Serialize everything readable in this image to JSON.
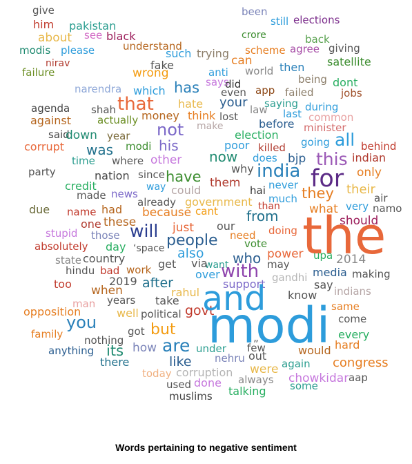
{
  "caption": "Words pertaining to negative sentiment",
  "words": [
    {
      "text": "give",
      "color": "#555555"
    },
    {
      "text": "been",
      "color": "#7a83b8"
    },
    {
      "text": "him",
      "color": "#c0392b"
    },
    {
      "text": "pakistan",
      "color": "#2a9d8f"
    },
    {
      "text": "still",
      "color": "#2d9cdb"
    },
    {
      "text": "elections",
      "color": "#7b2d8b"
    },
    {
      "text": "about",
      "color": "#e8b84a"
    },
    {
      "text": "see",
      "color": "#d36bc6"
    },
    {
      "text": "black",
      "color": "#9b1d5a"
    },
    {
      "text": "crore",
      "color": "#3c8d2f"
    },
    {
      "text": "back",
      "color": "#58a14e"
    },
    {
      "text": "modis",
      "color": "#1f8a70"
    },
    {
      "text": "please",
      "color": "#2d9cdb"
    },
    {
      "text": "understand",
      "color": "#b5651d"
    },
    {
      "text": "such",
      "color": "#2d9cdb"
    },
    {
      "text": "trying",
      "color": "#8c7e6a"
    },
    {
      "text": "scheme",
      "color": "#e67e22"
    },
    {
      "text": "agree",
      "color": "#a64ca6"
    },
    {
      "text": "giving",
      "color": "#555555"
    },
    {
      "text": "nirav",
      "color": "#b03a2e"
    },
    {
      "text": "can",
      "color": "#e67e22"
    },
    {
      "text": "satellite",
      "color": "#3c8d2f"
    },
    {
      "text": "fake",
      "color": "#555555"
    },
    {
      "text": "failure",
      "color": "#6b8e23"
    },
    {
      "text": "wrong",
      "color": "#f39c12"
    },
    {
      "text": "anti",
      "color": "#2d9cdb"
    },
    {
      "text": "world",
      "color": "#888888"
    },
    {
      "text": "then",
      "color": "#2980b9"
    },
    {
      "text": "being",
      "color": "#8c7e6a"
    },
    {
      "text": "says",
      "color": "#c678dd"
    },
    {
      "text": "did",
      "color": "#333333"
    },
    {
      "text": "dont",
      "color": "#27ae60"
    },
    {
      "text": "narendra",
      "color": "#8fa8d8"
    },
    {
      "text": "which",
      "color": "#2d9cdb"
    },
    {
      "text": "has",
      "color": "#2980b9"
    },
    {
      "text": "even",
      "color": "#555555"
    },
    {
      "text": "app",
      "color": "#8b4513"
    },
    {
      "text": "failed",
      "color": "#8c7e6a"
    },
    {
      "text": "jobs",
      "color": "#a0522d"
    },
    {
      "text": "that",
      "color": "#e8683a"
    },
    {
      "text": "your",
      "color": "#2a5d8f"
    },
    {
      "text": "agenda",
      "color": "#444444"
    },
    {
      "text": "shah",
      "color": "#555555"
    },
    {
      "text": "hate",
      "color": "#e8b84a"
    },
    {
      "text": "law",
      "color": "#888888"
    },
    {
      "text": "saying",
      "color": "#2a9d8f"
    },
    {
      "text": "during",
      "color": "#2d9cdb"
    },
    {
      "text": "against",
      "color": "#b5651d"
    },
    {
      "text": "actually",
      "color": "#6b8e23"
    },
    {
      "text": "money",
      "color": "#b5651d"
    },
    {
      "text": "think",
      "color": "#e67e22"
    },
    {
      "text": "lost",
      "color": "#555555"
    },
    {
      "text": "last",
      "color": "#2d9cdb"
    },
    {
      "text": "common",
      "color": "#e8a0a0"
    },
    {
      "text": "not",
      "color": "#7b68c8"
    },
    {
      "text": "make",
      "color": "#b5a5a5"
    },
    {
      "text": "before",
      "color": "#2a5d8f"
    },
    {
      "text": "minister",
      "color": "#d36b6b"
    },
    {
      "text": "said",
      "color": "#444444"
    },
    {
      "text": "down",
      "color": "#1f8a70"
    },
    {
      "text": "year",
      "color": "#7a6a3a"
    },
    {
      "text": "election",
      "color": "#27ae60"
    },
    {
      "text": "all",
      "color": "#2d9cdb"
    },
    {
      "text": "corrupt",
      "color": "#e8683a"
    },
    {
      "text": "modi",
      "color": "#3c8d2f"
    },
    {
      "text": "his",
      "color": "#7b68c8"
    },
    {
      "text": "poor",
      "color": "#2d9cdb"
    },
    {
      "text": "killed",
      "color": "#b03a2e"
    },
    {
      "text": "going",
      "color": "#2d9cdb"
    },
    {
      "text": "behind",
      "color": "#c0392b"
    },
    {
      "text": "was",
      "color": "#1f6f8b"
    },
    {
      "text": "this",
      "color": "#9b59b6"
    },
    {
      "text": "time",
      "color": "#2a9d8f"
    },
    {
      "text": "where",
      "color": "#555555"
    },
    {
      "text": "other",
      "color": "#c678dd"
    },
    {
      "text": "now",
      "color": "#1f8a70"
    },
    {
      "text": "does",
      "color": "#2d9cdb"
    },
    {
      "text": "bjp",
      "color": "#2a5d8f"
    },
    {
      "text": "indian",
      "color": "#b03a2e"
    },
    {
      "text": "party",
      "color": "#555555"
    },
    {
      "text": "why",
      "color": "#555555"
    },
    {
      "text": "india",
      "color": "#2980b9"
    },
    {
      "text": "nation",
      "color": "#444444"
    },
    {
      "text": "since",
      "color": "#555555"
    },
    {
      "text": "have",
      "color": "#3c8d2f"
    },
    {
      "text": "for",
      "color": "#5b2a86"
    },
    {
      "text": "only",
      "color": "#e67e22"
    },
    {
      "text": "credit",
      "color": "#27ae60"
    },
    {
      "text": "way",
      "color": "#2d9cdb"
    },
    {
      "text": "them",
      "color": "#b03a2e"
    },
    {
      "text": "never",
      "color": "#2d9cdb"
    },
    {
      "text": "they",
      "color": "#e67e22"
    },
    {
      "text": "their",
      "color": "#e8b84a"
    },
    {
      "text": "made",
      "color": "#555555"
    },
    {
      "text": "news",
      "color": "#7b68c8"
    },
    {
      "text": "could",
      "color": "#b5a5a5"
    },
    {
      "text": "hai",
      "color": "#333333"
    },
    {
      "text": "air",
      "color": "#555555"
    },
    {
      "text": "already",
      "color": "#555555"
    },
    {
      "text": "government",
      "color": "#e8b84a"
    },
    {
      "text": "much",
      "color": "#2d9cdb"
    },
    {
      "text": "due",
      "color": "#6b6b3a"
    },
    {
      "text": "name",
      "color": "#c0392b"
    },
    {
      "text": "had",
      "color": "#b5651d"
    },
    {
      "text": "because",
      "color": "#e67e22"
    },
    {
      "text": "cant",
      "color": "#f39c12"
    },
    {
      "text": "than",
      "color": "#c0392b"
    },
    {
      "text": "what",
      "color": "#e67e22"
    },
    {
      "text": "very",
      "color": "#2d9cdb"
    },
    {
      "text": "namo",
      "color": "#555555"
    },
    {
      "text": "from",
      "color": "#1f6f8b"
    },
    {
      "text": "should",
      "color": "#9b1d5a"
    },
    {
      "text": "one",
      "color": "#b03a2e"
    },
    {
      "text": "these",
      "color": "#b5651d"
    },
    {
      "text": "stupid",
      "color": "#c678dd"
    },
    {
      "text": "those",
      "color": "#7a83b8"
    },
    {
      "text": "will",
      "color": "#2a3d8f"
    },
    {
      "text": "just",
      "color": "#e8683a"
    },
    {
      "text": "our",
      "color": "#555555"
    },
    {
      "text": "doing",
      "color": "#e8683a"
    },
    {
      "text": "the",
      "color": "#e8683a"
    },
    {
      "text": "absolutely",
      "color": "#c0392b"
    },
    {
      "text": "day",
      "color": "#27ae60"
    },
    {
      "text": "‘space",
      "color": "#555555"
    },
    {
      "text": "people",
      "color": "#2a5d8f"
    },
    {
      "text": "need",
      "color": "#e67e22"
    },
    {
      "text": "vote",
      "color": "#3c8d2f"
    },
    {
      "text": "state",
      "color": "#888888"
    },
    {
      "text": "country",
      "color": "#555555"
    },
    {
      "text": "also",
      "color": "#2d9cdb"
    },
    {
      "text": "who",
      "color": "#2a5d8f"
    },
    {
      "text": "power",
      "color": "#e8683a"
    },
    {
      "text": "upa",
      "color": "#27ae60"
    },
    {
      "text": "2014",
      "color": "#888888"
    },
    {
      "text": "hindu",
      "color": "#555555"
    },
    {
      "text": "bad",
      "color": "#c0392b"
    },
    {
      "text": "work",
      "color": "#b5651d"
    },
    {
      "text": "get",
      "color": "#555555"
    },
    {
      "text": "want",
      "color": "#2a9d8f"
    },
    {
      "text": "via",
      "color": "#555555"
    },
    {
      "text": "with",
      "color": "#8e44ad"
    },
    {
      "text": "may",
      "color": "#555555"
    },
    {
      "text": "media",
      "color": "#2a5d8f"
    },
    {
      "text": "making",
      "color": "#555555"
    },
    {
      "text": "too",
      "color": "#c0392b"
    },
    {
      "text": "2019",
      "color": "#555555"
    },
    {
      "text": "after",
      "color": "#1f6f8b"
    },
    {
      "text": "over",
      "color": "#2d9cdb"
    },
    {
      "text": "support",
      "color": "#7b68c8"
    },
    {
      "text": "gandhi",
      "color": "#b5b5b5"
    },
    {
      "text": "say",
      "color": "#555555"
    },
    {
      "text": "when",
      "color": "#b5651d"
    },
    {
      "text": "indians",
      "color": "#b5a5a5"
    },
    {
      "text": "man",
      "color": "#e8a0a0"
    },
    {
      "text": "years",
      "color": "#555555"
    },
    {
      "text": "take",
      "color": "#555555"
    },
    {
      "text": "rahul",
      "color": "#e8b84a"
    },
    {
      "text": "know",
      "color": "#555555"
    },
    {
      "text": "opposition",
      "color": "#e67e22"
    },
    {
      "text": "well",
      "color": "#e8b84a"
    },
    {
      "text": "political",
      "color": "#555555"
    },
    {
      "text": "govt",
      "color": "#c0392b"
    },
    {
      "text": "and",
      "color": "#2d9cdb"
    },
    {
      "text": "same",
      "color": "#e67e22"
    },
    {
      "text": "you",
      "color": "#2980b9"
    },
    {
      "text": "come",
      "color": "#555555"
    },
    {
      "text": "modi",
      "color": "#2d9cdb"
    },
    {
      "text": "family",
      "color": "#e67e22"
    },
    {
      "text": "got",
      "color": "#555555"
    },
    {
      "text": "but",
      "color": "#f39c12"
    },
    {
      "text": "every",
      "color": "#27ae60"
    },
    {
      "text": "nothing",
      "color": "#555555"
    },
    {
      "text": "„",
      "color": "#555555"
    },
    {
      "text": "hard",
      "color": "#e67e22"
    },
    {
      "text": "anything",
      "color": "#2a5d8f"
    },
    {
      "text": "its",
      "color": "#1f8a70"
    },
    {
      "text": "how",
      "color": "#7a83b8"
    },
    {
      "text": "are",
      "color": "#2980b9"
    },
    {
      "text": "under",
      "color": "#2a9d8f"
    },
    {
      "text": "few",
      "color": "#555555"
    },
    {
      "text": "would",
      "color": "#b5651d"
    },
    {
      "text": "there",
      "color": "#1f6f8b"
    },
    {
      "text": "like",
      "color": "#2a5d8f"
    },
    {
      "text": "nehru",
      "color": "#7a83b8"
    },
    {
      "text": "out",
      "color": "#555555"
    },
    {
      "text": "were",
      "color": "#e8b84a"
    },
    {
      "text": "congress",
      "color": "#e67e22"
    },
    {
      "text": "today",
      "color": "#f0b080"
    },
    {
      "text": "corruption",
      "color": "#b5b5b5"
    },
    {
      "text": "again",
      "color": "#2a9d8f"
    },
    {
      "text": "chowkidar",
      "color": "#c678dd"
    },
    {
      "text": "aap",
      "color": "#555555"
    },
    {
      "text": "used",
      "color": "#555555"
    },
    {
      "text": "done",
      "color": "#c678dd"
    },
    {
      "text": "always",
      "color": "#888888"
    },
    {
      "text": "some",
      "color": "#2a9d8f"
    },
    {
      "text": "muslims",
      "color": "#444444"
    },
    {
      "text": "talking",
      "color": "#27ae60"
    }
  ]
}
